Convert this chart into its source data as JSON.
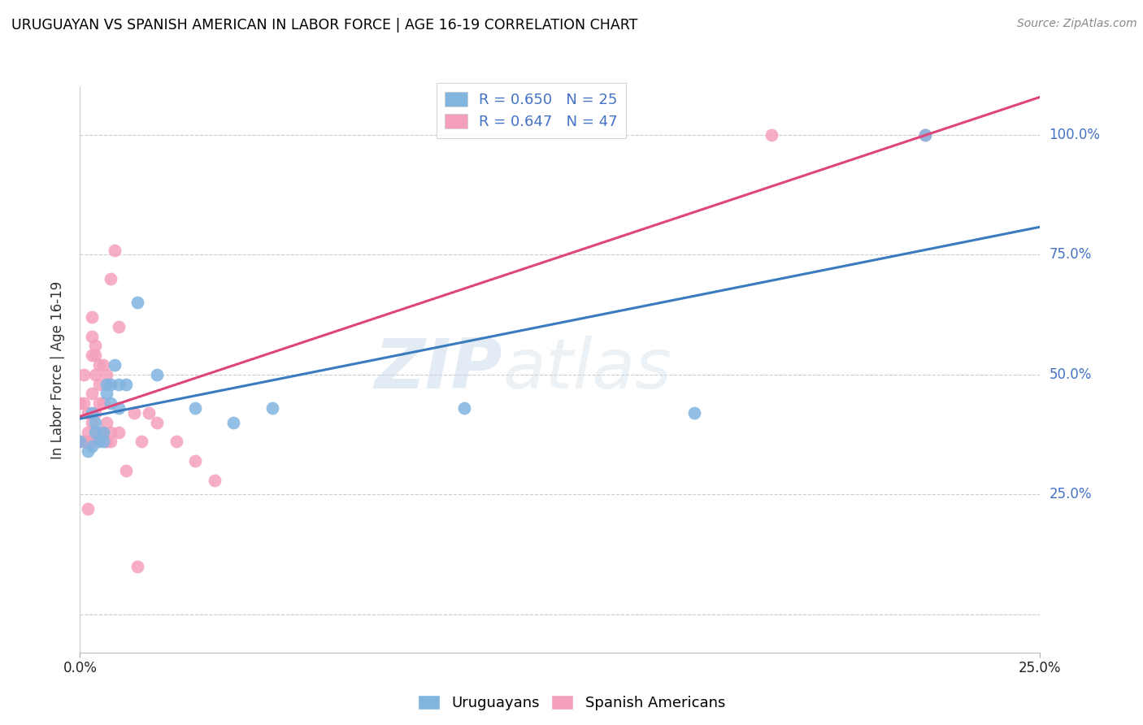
{
  "title": "URUGUAYAN VS SPANISH AMERICAN IN LABOR FORCE | AGE 16-19 CORRELATION CHART",
  "source": "Source: ZipAtlas.com",
  "ylabel": "In Labor Force | Age 16-19",
  "uruguayan_R": 0.65,
  "uruguayan_N": 25,
  "spanish_R": 0.647,
  "spanish_N": 47,
  "uruguayan_color": "#82b4e0",
  "spanish_color": "#f4a0bb",
  "uruguayan_line_color": "#3a7bbf",
  "spanish_line_color": "#e0457a",
  "watermark_ZIP": "ZIP",
  "watermark_atlas": "atlas",
  "xlim": [
    0.0,
    0.25
  ],
  "ylim": [
    -0.08,
    1.1
  ],
  "ytick_vals": [
    0.0,
    0.25,
    0.5,
    0.75,
    1.0
  ],
  "ytick_labels_right": [
    "",
    "25.0%",
    "50.0%",
    "75.0%",
    "100.0%"
  ],
  "xtick_vals": [
    0.0,
    0.25
  ],
  "xtick_labels": [
    "0.0%",
    "25.0%"
  ],
  "uruguayan_x": [
    0.0,
    0.002,
    0.003,
    0.003,
    0.004,
    0.004,
    0.005,
    0.006,
    0.006,
    0.007,
    0.007,
    0.008,
    0.008,
    0.009,
    0.01,
    0.01,
    0.012,
    0.015,
    0.02,
    0.03,
    0.04,
    0.05,
    0.1,
    0.16,
    0.22
  ],
  "uruguayan_y": [
    0.36,
    0.34,
    0.35,
    0.42,
    0.38,
    0.4,
    0.36,
    0.38,
    0.36,
    0.46,
    0.48,
    0.44,
    0.48,
    0.52,
    0.43,
    0.48,
    0.48,
    0.65,
    0.5,
    0.43,
    0.4,
    0.43,
    0.43,
    0.42,
    1.0
  ],
  "spanish_x": [
    0.0,
    0.0,
    0.001,
    0.001,
    0.001,
    0.002,
    0.002,
    0.002,
    0.002,
    0.003,
    0.003,
    0.003,
    0.003,
    0.003,
    0.003,
    0.004,
    0.004,
    0.004,
    0.004,
    0.004,
    0.005,
    0.005,
    0.005,
    0.005,
    0.006,
    0.006,
    0.006,
    0.007,
    0.007,
    0.007,
    0.008,
    0.008,
    0.008,
    0.009,
    0.01,
    0.01,
    0.012,
    0.014,
    0.015,
    0.016,
    0.018,
    0.02,
    0.025,
    0.03,
    0.035,
    0.18,
    0.22
  ],
  "spanish_y": [
    0.36,
    0.44,
    0.36,
    0.44,
    0.5,
    0.22,
    0.36,
    0.38,
    0.42,
    0.36,
    0.4,
    0.46,
    0.54,
    0.58,
    0.62,
    0.36,
    0.42,
    0.5,
    0.54,
    0.56,
    0.38,
    0.44,
    0.48,
    0.52,
    0.38,
    0.44,
    0.52,
    0.36,
    0.4,
    0.5,
    0.36,
    0.38,
    0.7,
    0.76,
    0.38,
    0.6,
    0.3,
    0.42,
    0.1,
    0.36,
    0.42,
    0.4,
    0.36,
    0.32,
    0.28,
    1.0,
    1.0
  ]
}
